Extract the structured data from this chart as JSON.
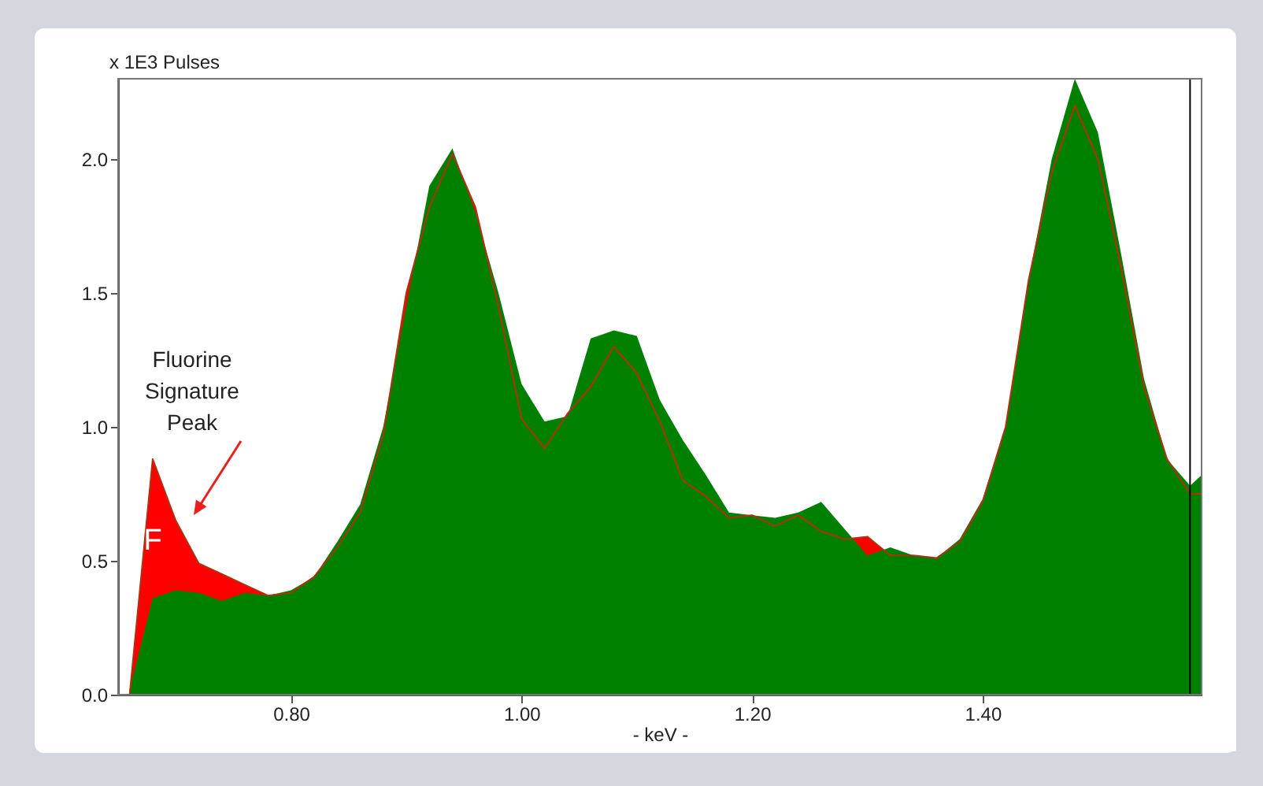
{
  "chart_data": {
    "type": "area",
    "xlabel": "- keV -",
    "ylabel": "x 1E3 Pulses",
    "x": [
      0.66,
      0.68,
      0.7,
      0.72,
      0.74,
      0.76,
      0.78,
      0.8,
      0.82,
      0.84,
      0.86,
      0.88,
      0.9,
      0.92,
      0.94,
      0.96,
      0.98,
      1.0,
      1.02,
      1.04,
      1.06,
      1.08,
      1.1,
      1.12,
      1.14,
      1.16,
      1.18,
      1.2,
      1.22,
      1.24,
      1.26,
      1.28,
      1.3,
      1.32,
      1.34,
      1.36,
      1.38,
      1.4,
      1.42,
      1.44,
      1.46,
      1.48,
      1.5,
      1.52,
      1.54,
      1.56,
      1.58,
      1.59
    ],
    "series": [
      {
        "color": "#ff0000",
        "values": [
          0.0,
          0.88,
          0.65,
          0.49,
          0.45,
          0.41,
          0.37,
          0.38,
          0.44,
          0.55,
          0.68,
          0.97,
          1.5,
          1.82,
          2.02,
          1.82,
          1.45,
          1.03,
          0.92,
          1.05,
          1.15,
          1.3,
          1.2,
          1.02,
          0.8,
          0.74,
          0.66,
          0.67,
          0.63,
          0.67,
          0.61,
          0.58,
          0.59,
          0.52,
          0.52,
          0.51,
          0.57,
          0.72,
          1.0,
          1.55,
          1.95,
          2.2,
          2.0,
          1.6,
          1.15,
          0.88,
          0.75,
          0.75
        ]
      },
      {
        "color": "#008000",
        "values": [
          0.02,
          0.36,
          0.39,
          0.38,
          0.35,
          0.38,
          0.37,
          0.39,
          0.44,
          0.57,
          0.71,
          1.0,
          1.45,
          1.9,
          2.04,
          1.8,
          1.5,
          1.16,
          1.02,
          1.04,
          1.33,
          1.36,
          1.34,
          1.1,
          0.95,
          0.82,
          0.68,
          0.67,
          0.66,
          0.68,
          0.72,
          0.62,
          0.52,
          0.55,
          0.52,
          0.51,
          0.58,
          0.73,
          1.0,
          1.55,
          2.0,
          2.3,
          2.1,
          1.65,
          1.18,
          0.88,
          0.78,
          0.82
        ]
      }
    ],
    "xlim": [
      0.65,
      1.59
    ],
    "xticks": [
      {
        "value": 0.8,
        "label": "0.80"
      },
      {
        "value": 1.0,
        "label": "1.00"
      },
      {
        "value": 1.2,
        "label": "1.20"
      },
      {
        "value": 1.4,
        "label": "1.40"
      }
    ],
    "ylim": [
      0,
      2.3
    ],
    "yticks": [
      {
        "value": 0,
        "label": "0.0"
      },
      {
        "value": 0.5,
        "label": "0.5"
      },
      {
        "value": 1.0,
        "label": "1.0"
      },
      {
        "value": 1.5,
        "label": "1.5"
      },
      {
        "value": 2.0,
        "label": "2.0"
      }
    ],
    "ref_lines": [
      {
        "axis": "x",
        "value": 1.58,
        "color": "#000000"
      }
    ],
    "annotations": [
      "Fluorine Signature Peak",
      "F"
    ],
    "grid": false
  }
}
